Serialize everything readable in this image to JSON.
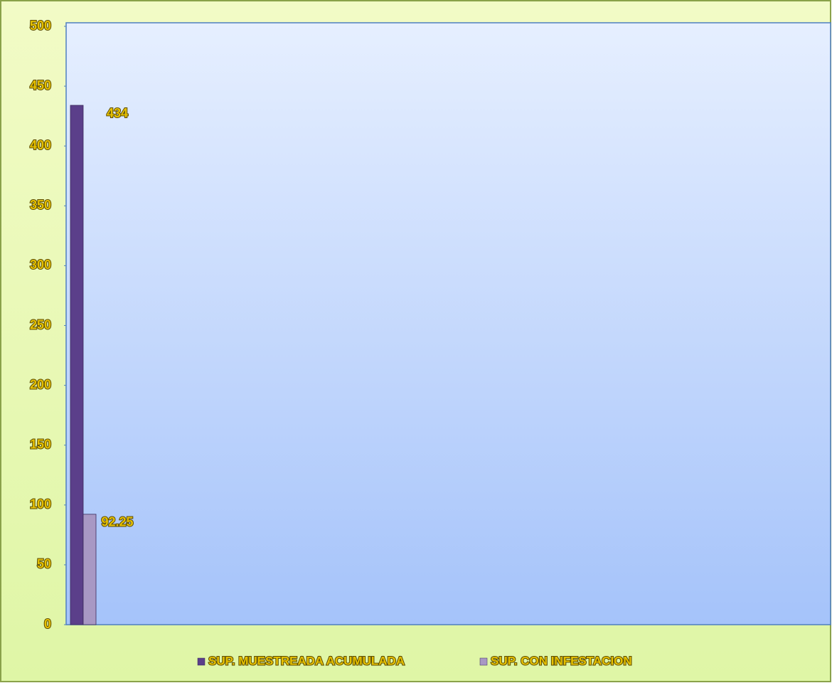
{
  "chart_data": {
    "type": "bar",
    "categories": [
      null
    ],
    "series": [
      {
        "name": "SUP. MUESTREADA ACUMULADA",
        "color": "#5b3f8a",
        "values": [
          434
        ]
      },
      {
        "name": "SUP. CON INFESTACION",
        "color": "#a898c4",
        "values": [
          92.25
        ]
      }
    ],
    "ylim": [
      0,
      500
    ],
    "yticks": [
      0,
      50,
      100,
      150,
      200,
      250,
      300,
      350,
      400,
      450,
      500
    ],
    "legend": "bottom",
    "data_labels": true
  }
}
